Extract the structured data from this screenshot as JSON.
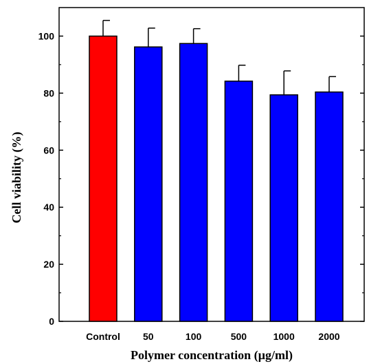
{
  "chart_data": {
    "type": "bar",
    "title": "",
    "xlabel": "Polymer concentration (µg/ml)",
    "ylabel": "Cell viability (%)",
    "ylim": [
      0,
      110
    ],
    "yticks": [
      0,
      20,
      40,
      60,
      80,
      100
    ],
    "categories": [
      "Control",
      "50",
      "100",
      "500",
      "1000",
      "2000"
    ],
    "values": [
      100,
      96.2,
      97.4,
      84.2,
      79.4,
      80.4
    ],
    "errors": [
      5.5,
      6.6,
      5.2,
      5.6,
      8.4,
      5.4
    ],
    "colors": [
      "#ff0000",
      "#0000ff",
      "#0000ff",
      "#0000ff",
      "#0000ff",
      "#0000ff"
    ],
    "grid": false,
    "legend": "none"
  }
}
